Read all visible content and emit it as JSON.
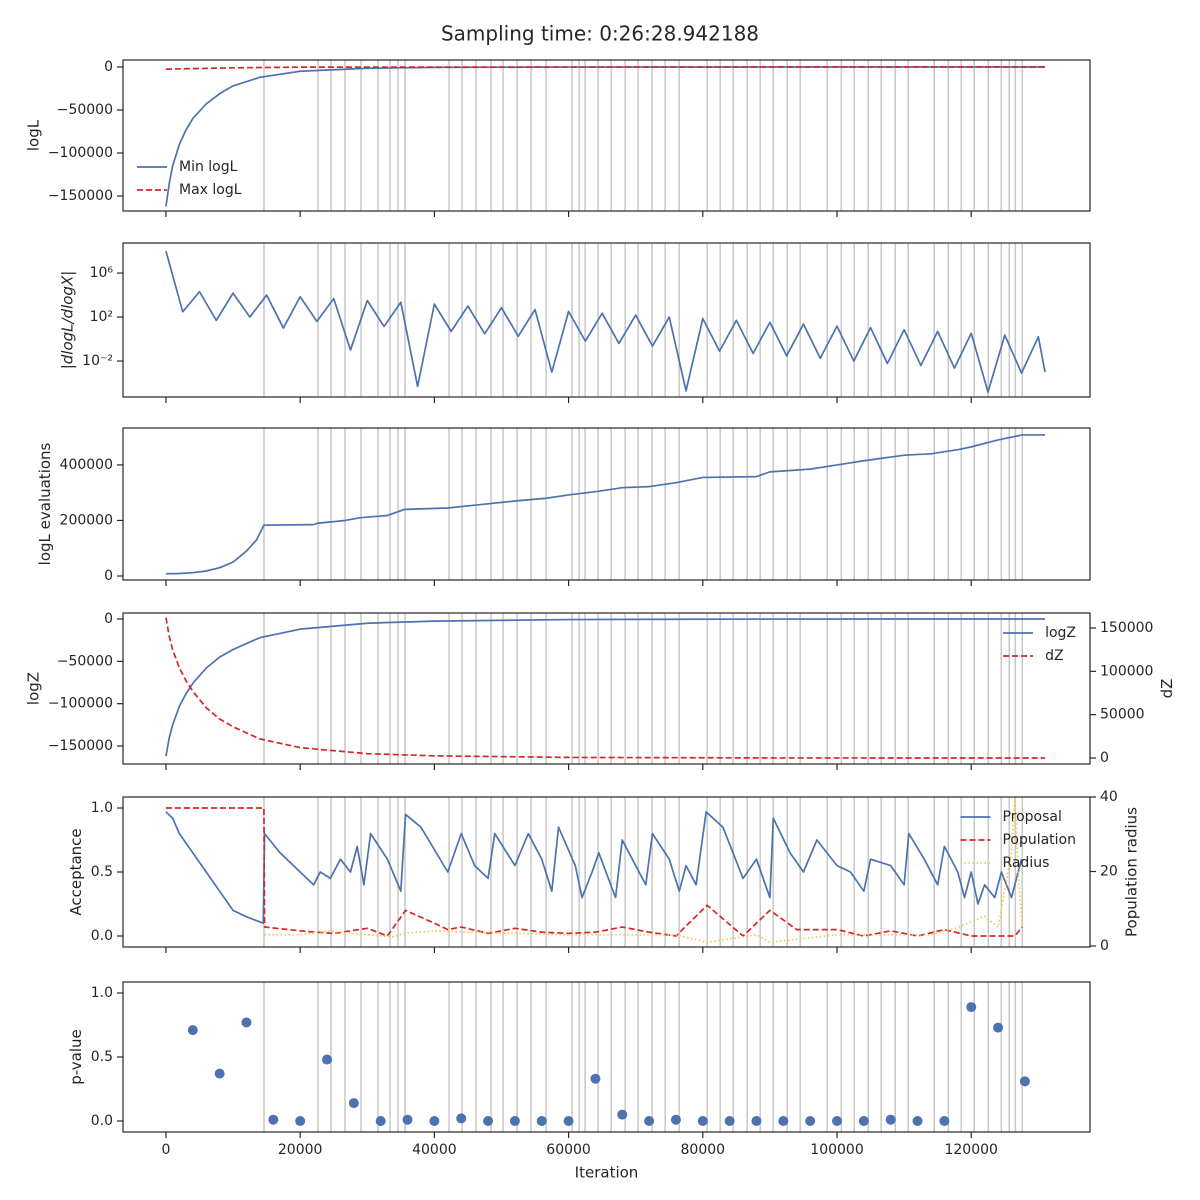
{
  "title": "Sampling time: 0:26:28.942188",
  "xlabel": "Iteration",
  "xlim": [
    -6400,
    137700
  ],
  "xticks": [
    0,
    20000,
    40000,
    60000,
    80000,
    100000,
    120000
  ],
  "vlines": [
    14610,
    22660,
    24600,
    26680,
    29070,
    31600,
    33390,
    34580,
    35630,
    42190,
    44130,
    46210,
    48450,
    50240,
    52330,
    54410,
    56650,
    60520,
    61570,
    62460,
    64400,
    66340,
    68430,
    70360,
    72450,
    74390,
    76480,
    80650,
    82590,
    84530,
    86610,
    88550,
    90490,
    92580,
    94510,
    98540,
    100630,
    102560,
    104650,
    106590,
    108680,
    110610,
    114490,
    116580,
    118510,
    120450,
    122540,
    124480,
    125670,
    126570,
    127610
  ],
  "chart_data": [
    {
      "type": "line",
      "ylabel": "logL",
      "ylim": [
        -167400,
        8100
      ],
      "yticks": [
        {
          "value": -150000,
          "label": "−150000"
        },
        {
          "value": -100000,
          "label": "−100000"
        },
        {
          "value": -50000,
          "label": "−50000"
        },
        0
      ],
      "legend": "lower left",
      "series": [
        {
          "name": "Min logL",
          "color": "#4c72b0",
          "dash": "solid",
          "x": [
            0,
            500,
            1000,
            2000,
            3000,
            4000,
            6000,
            8000,
            10000,
            14000,
            20000,
            30000,
            40000,
            60000,
            90000,
            131000
          ],
          "values": [
            -162000,
            -135000,
            -115000,
            -90000,
            -73000,
            -60000,
            -43000,
            -31000,
            -22000,
            -12000,
            -5000,
            -1500,
            -500,
            -100,
            -20,
            0
          ]
        },
        {
          "name": "Max logL",
          "color": "#d62728",
          "dash": "dashed",
          "x": [
            0,
            10000,
            20000,
            131000
          ],
          "values": [
            -2500,
            -1000,
            -200,
            0
          ]
        }
      ]
    },
    {
      "type": "line",
      "ylabel": "|dlogL/dlogX|",
      "yscale": "log",
      "ylim": [
        5.4e-06,
        540000000.0
      ],
      "yticks": [
        {
          "value": 0.01,
          "label": "10⁻²"
        },
        {
          "value": 100,
          "label": "10²"
        },
        {
          "value": 1000000,
          "label": "10⁶"
        }
      ],
      "series": [
        {
          "color": "#4c72b0",
          "dash": "solid",
          "x": [
            0,
            2500,
            5000,
            7500,
            10000,
            12500,
            15000,
            17500,
            20000,
            22500,
            25000,
            27500,
            30000,
            32500,
            35000,
            37500,
            40000,
            42500,
            45000,
            47500,
            50000,
            52500,
            55000,
            57500,
            60000,
            62500,
            65000,
            67500,
            70000,
            72500,
            75000,
            77500,
            80000,
            82500,
            85000,
            87500,
            90000,
            92500,
            95000,
            97500,
            100000,
            102500,
            105000,
            107500,
            110000,
            112500,
            115000,
            117500,
            120000,
            122500,
            125000,
            127500,
            130000,
            131000
          ],
          "values": [
            100000000,
            300,
            20000,
            50,
            15000,
            100,
            10000,
            10,
            7000,
            40,
            4700,
            0.1,
            3200,
            14,
            2200,
            5e-05,
            1500,
            5,
            1000,
            3,
            700,
            1.8,
            480,
            0.001,
            320,
            0.65,
            220,
            0.4,
            150,
            0.23,
            100,
            2e-05,
            72,
            0.08,
            50,
            0.05,
            33,
            0.03,
            23,
            0.018,
            15,
            0.01,
            11,
            0.006,
            7,
            0.004,
            5,
            0.0023,
            3.4,
            1.5e-05,
            2.3,
            0.0008,
            1.6,
            0.001
          ]
        }
      ]
    },
    {
      "type": "line",
      "ylabel": "logL evaluations",
      "ylim": [
        -14400,
        533000
      ],
      "yticks": [
        0,
        200000,
        400000
      ],
      "series": [
        {
          "color": "#4c72b0",
          "dash": "solid",
          "x": [
            0,
            2000,
            4000,
            6000,
            8000,
            10000,
            12000,
            13500,
            14600,
            22000,
            22600,
            26680,
            29000,
            33000,
            35600,
            42000,
            46000,
            52000,
            56650,
            60000,
            64400,
            68000,
            72000,
            76000,
            80000,
            88000,
            90000,
            96000,
            100000,
            104000,
            110000,
            114000,
            118000,
            120000,
            124000,
            127600,
            131000
          ],
          "values": [
            8000,
            9000,
            12000,
            18000,
            30000,
            50000,
            90000,
            130000,
            183000,
            185000,
            190000,
            200000,
            210000,
            218000,
            240000,
            245000,
            255000,
            270000,
            280000,
            292000,
            305000,
            318000,
            322000,
            336000,
            355000,
            358000,
            375000,
            385000,
            400000,
            415000,
            435000,
            440000,
            455000,
            465000,
            490000,
            508000,
            508000
          ]
        }
      ]
    },
    {
      "type": "line",
      "ylabel": "logZ",
      "y2label": "dZ",
      "ylim": [
        -171200,
        7060
      ],
      "y2lim": [
        -6900,
        167300
      ],
      "yticks": [
        {
          "value": -150000,
          "label": "−150000"
        },
        {
          "value": -100000,
          "label": "−100000"
        },
        {
          "value": -50000,
          "label": "−50000"
        },
        0
      ],
      "y2ticks": [
        0,
        50000,
        100000,
        150000
      ],
      "legend": "upper right",
      "series": [
        {
          "name": "logZ",
          "color": "#4c72b0",
          "dash": "solid",
          "x": [
            0,
            500,
            1000,
            2000,
            3000,
            4000,
            6000,
            8000,
            10000,
            14000,
            20000,
            30000,
            40000,
            60000,
            90000,
            131000
          ],
          "values": [
            -162000,
            -140000,
            -125000,
            -103000,
            -88000,
            -76000,
            -58000,
            -45000,
            -36000,
            -22000,
            -12000,
            -5000,
            -2500,
            -700,
            -100,
            0
          ]
        },
        {
          "name": "dZ",
          "color": "#d62728",
          "dash": "dashed",
          "axis": "y2",
          "x": [
            0,
            500,
            1000,
            2000,
            3000,
            4000,
            6000,
            8000,
            10000,
            14000,
            20000,
            30000,
            40000,
            60000,
            90000,
            131000
          ],
          "values": [
            162000,
            140000,
            125000,
            104000,
            89000,
            77000,
            58000,
            45000,
            36000,
            22000,
            12000,
            5000,
            2500,
            700,
            100,
            0
          ]
        }
      ]
    },
    {
      "type": "line",
      "ylabel": "Acceptance",
      "y2label": "Population radius",
      "ylim": [
        -0.086,
        1.086
      ],
      "y2lim": [
        -0.27,
        40
      ],
      "yticks": [
        {
          "value": 0,
          "label": "0.0"
        },
        0.5,
        {
          "value": 1,
          "label": "1.0"
        }
      ],
      "y2ticks": [
        0,
        20,
        40
      ],
      "legend": "upper right",
      "series": [
        {
          "name": "Proposal",
          "color": "#4c72b0",
          "dash": "solid",
          "x": [
            0,
            1000,
            2000,
            4000,
            6000,
            8000,
            10000,
            12000,
            14500,
            14700,
            17000,
            20000,
            22000,
            23000,
            24500,
            26000,
            27500,
            28500,
            29500,
            30500,
            33000,
            35000,
            35700,
            38000,
            42000,
            44000,
            46000,
            48000,
            49000,
            52000,
            54000,
            56000,
            57500,
            58500,
            61000,
            62000,
            63500,
            64500,
            67000,
            68000,
            70000,
            71500,
            72500,
            75000,
            76500,
            77500,
            79000,
            80500,
            83000,
            86000,
            88000,
            90000,
            90500,
            93000,
            95000,
            97000,
            100000,
            102000,
            104000,
            105000,
            108000,
            110000,
            110700,
            113000,
            115000,
            116000,
            118000,
            119000,
            120000,
            121000,
            122000,
            123500,
            124500,
            126000,
            127500
          ],
          "values": [
            0.97,
            0.92,
            0.8,
            0.65,
            0.5,
            0.35,
            0.2,
            0.15,
            0.1,
            0.8,
            0.65,
            0.5,
            0.4,
            0.5,
            0.45,
            0.6,
            0.5,
            0.7,
            0.4,
            0.8,
            0.6,
            0.35,
            0.95,
            0.85,
            0.5,
            0.8,
            0.55,
            0.45,
            0.8,
            0.55,
            0.8,
            0.6,
            0.35,
            0.85,
            0.55,
            0.3,
            0.5,
            0.65,
            0.3,
            0.75,
            0.55,
            0.4,
            0.8,
            0.6,
            0.35,
            0.55,
            0.4,
            0.97,
            0.85,
            0.45,
            0.6,
            0.3,
            0.92,
            0.65,
            0.5,
            0.75,
            0.55,
            0.5,
            0.35,
            0.6,
            0.55,
            0.4,
            0.8,
            0.6,
            0.4,
            0.7,
            0.5,
            0.3,
            0.5,
            0.25,
            0.4,
            0.3,
            0.5,
            0.3,
            0.6
          ]
        },
        {
          "name": "Population",
          "color": "#d62728",
          "dash": "dashed",
          "x": [
            0,
            14600,
            14700,
            20000,
            25000,
            30000,
            33000,
            35700,
            40000,
            42000,
            44000,
            48000,
            52000,
            56000,
            60000,
            64000,
            68000,
            72000,
            76000,
            80650,
            86000,
            90000,
            94000,
            100000,
            104000,
            108000,
            112000,
            116000,
            120000,
            124000,
            126500,
            127600
          ],
          "values": [
            1.0,
            1.0,
            0.07,
            0.04,
            0.02,
            0.06,
            0.0,
            0.2,
            0.1,
            0.05,
            0.07,
            0.02,
            0.06,
            0.03,
            0.02,
            0.03,
            0.07,
            0.03,
            0.0,
            0.24,
            0.0,
            0.2,
            0.05,
            0.05,
            0.0,
            0.04,
            0.0,
            0.05,
            0.0,
            0.0,
            0.0,
            0.07
          ]
        },
        {
          "name": "Radius",
          "color": "#f5c840",
          "dash": "dotted",
          "axis": "y2",
          "x": [
            14700,
            20000,
            24000,
            30000,
            34000,
            35700,
            40000,
            50000,
            60000,
            70000,
            76000,
            80650,
            88000,
            90000,
            100000,
            110000,
            114000,
            118000,
            122000,
            124000,
            126000,
            126500,
            127000,
            127600
          ],
          "values": [
            3,
            3,
            4,
            3,
            2.5,
            3.5,
            4,
            3.5,
            3,
            3,
            3,
            1,
            3,
            1,
            3,
            3,
            3,
            5,
            8,
            5,
            25,
            40,
            20,
            5
          ]
        }
      ]
    },
    {
      "type": "scatter",
      "ylabel": "p-value",
      "ylim": [
        -0.086,
        1.086
      ],
      "yticks": [
        {
          "value": 0,
          "label": "0.0"
        },
        0.5,
        {
          "value": 1,
          "label": "1.0"
        }
      ],
      "series": [
        {
          "color": "#4c72b0",
          "x": [
            4000,
            8000,
            12000,
            16000,
            20000,
            24000,
            28000,
            32000,
            36000,
            40000,
            44000,
            48000,
            52000,
            56000,
            60000,
            64000,
            68000,
            72000,
            76000,
            80000,
            84000,
            88000,
            92000,
            96000,
            100000,
            104000,
            108000,
            112000,
            116000,
            120000,
            124000,
            128000
          ],
          "values": [
            0.71,
            0.37,
            0.77,
            0.01,
            0.0,
            0.48,
            0.14,
            0.0,
            0.01,
            0.0,
            0.02,
            0.0,
            0.0,
            0.0,
            0.0,
            0.33,
            0.05,
            0.0,
            0.01,
            0.0,
            0.0,
            0.0,
            0.0,
            0.0,
            0.0,
            0.0,
            0.01,
            0.0,
            0.0,
            0.89,
            0.73,
            0.31
          ]
        }
      ]
    }
  ]
}
